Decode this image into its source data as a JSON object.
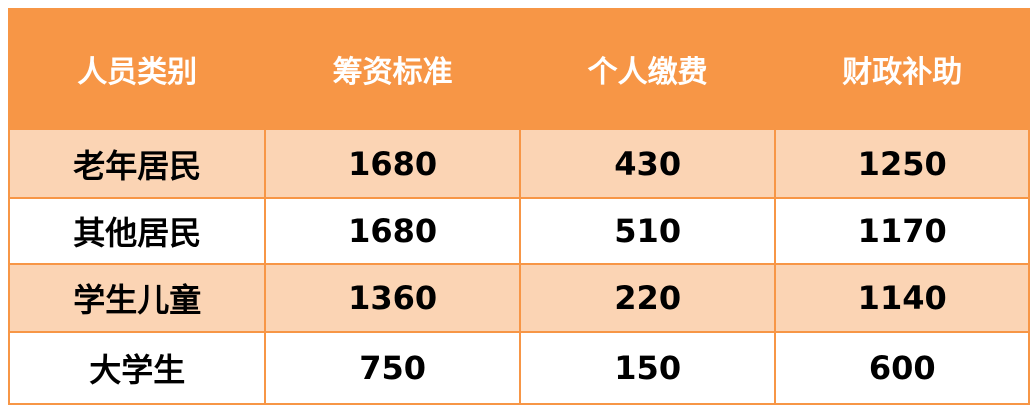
{
  "table": {
    "headers": [
      "人员类别",
      "筹资标准",
      "个人缴费",
      "财政补助"
    ],
    "rows": [
      [
        "老年居民",
        "1680",
        "430",
        "1250"
      ],
      [
        "其他居民",
        "1680",
        "510",
        "1170"
      ],
      [
        "学生儿童",
        "1360",
        "220",
        "1140"
      ],
      [
        "大学生",
        "750",
        "150",
        "600"
      ]
    ]
  },
  "colors": {
    "header": "#F79646",
    "band": "#FBD4B4",
    "border": "#F79646"
  }
}
